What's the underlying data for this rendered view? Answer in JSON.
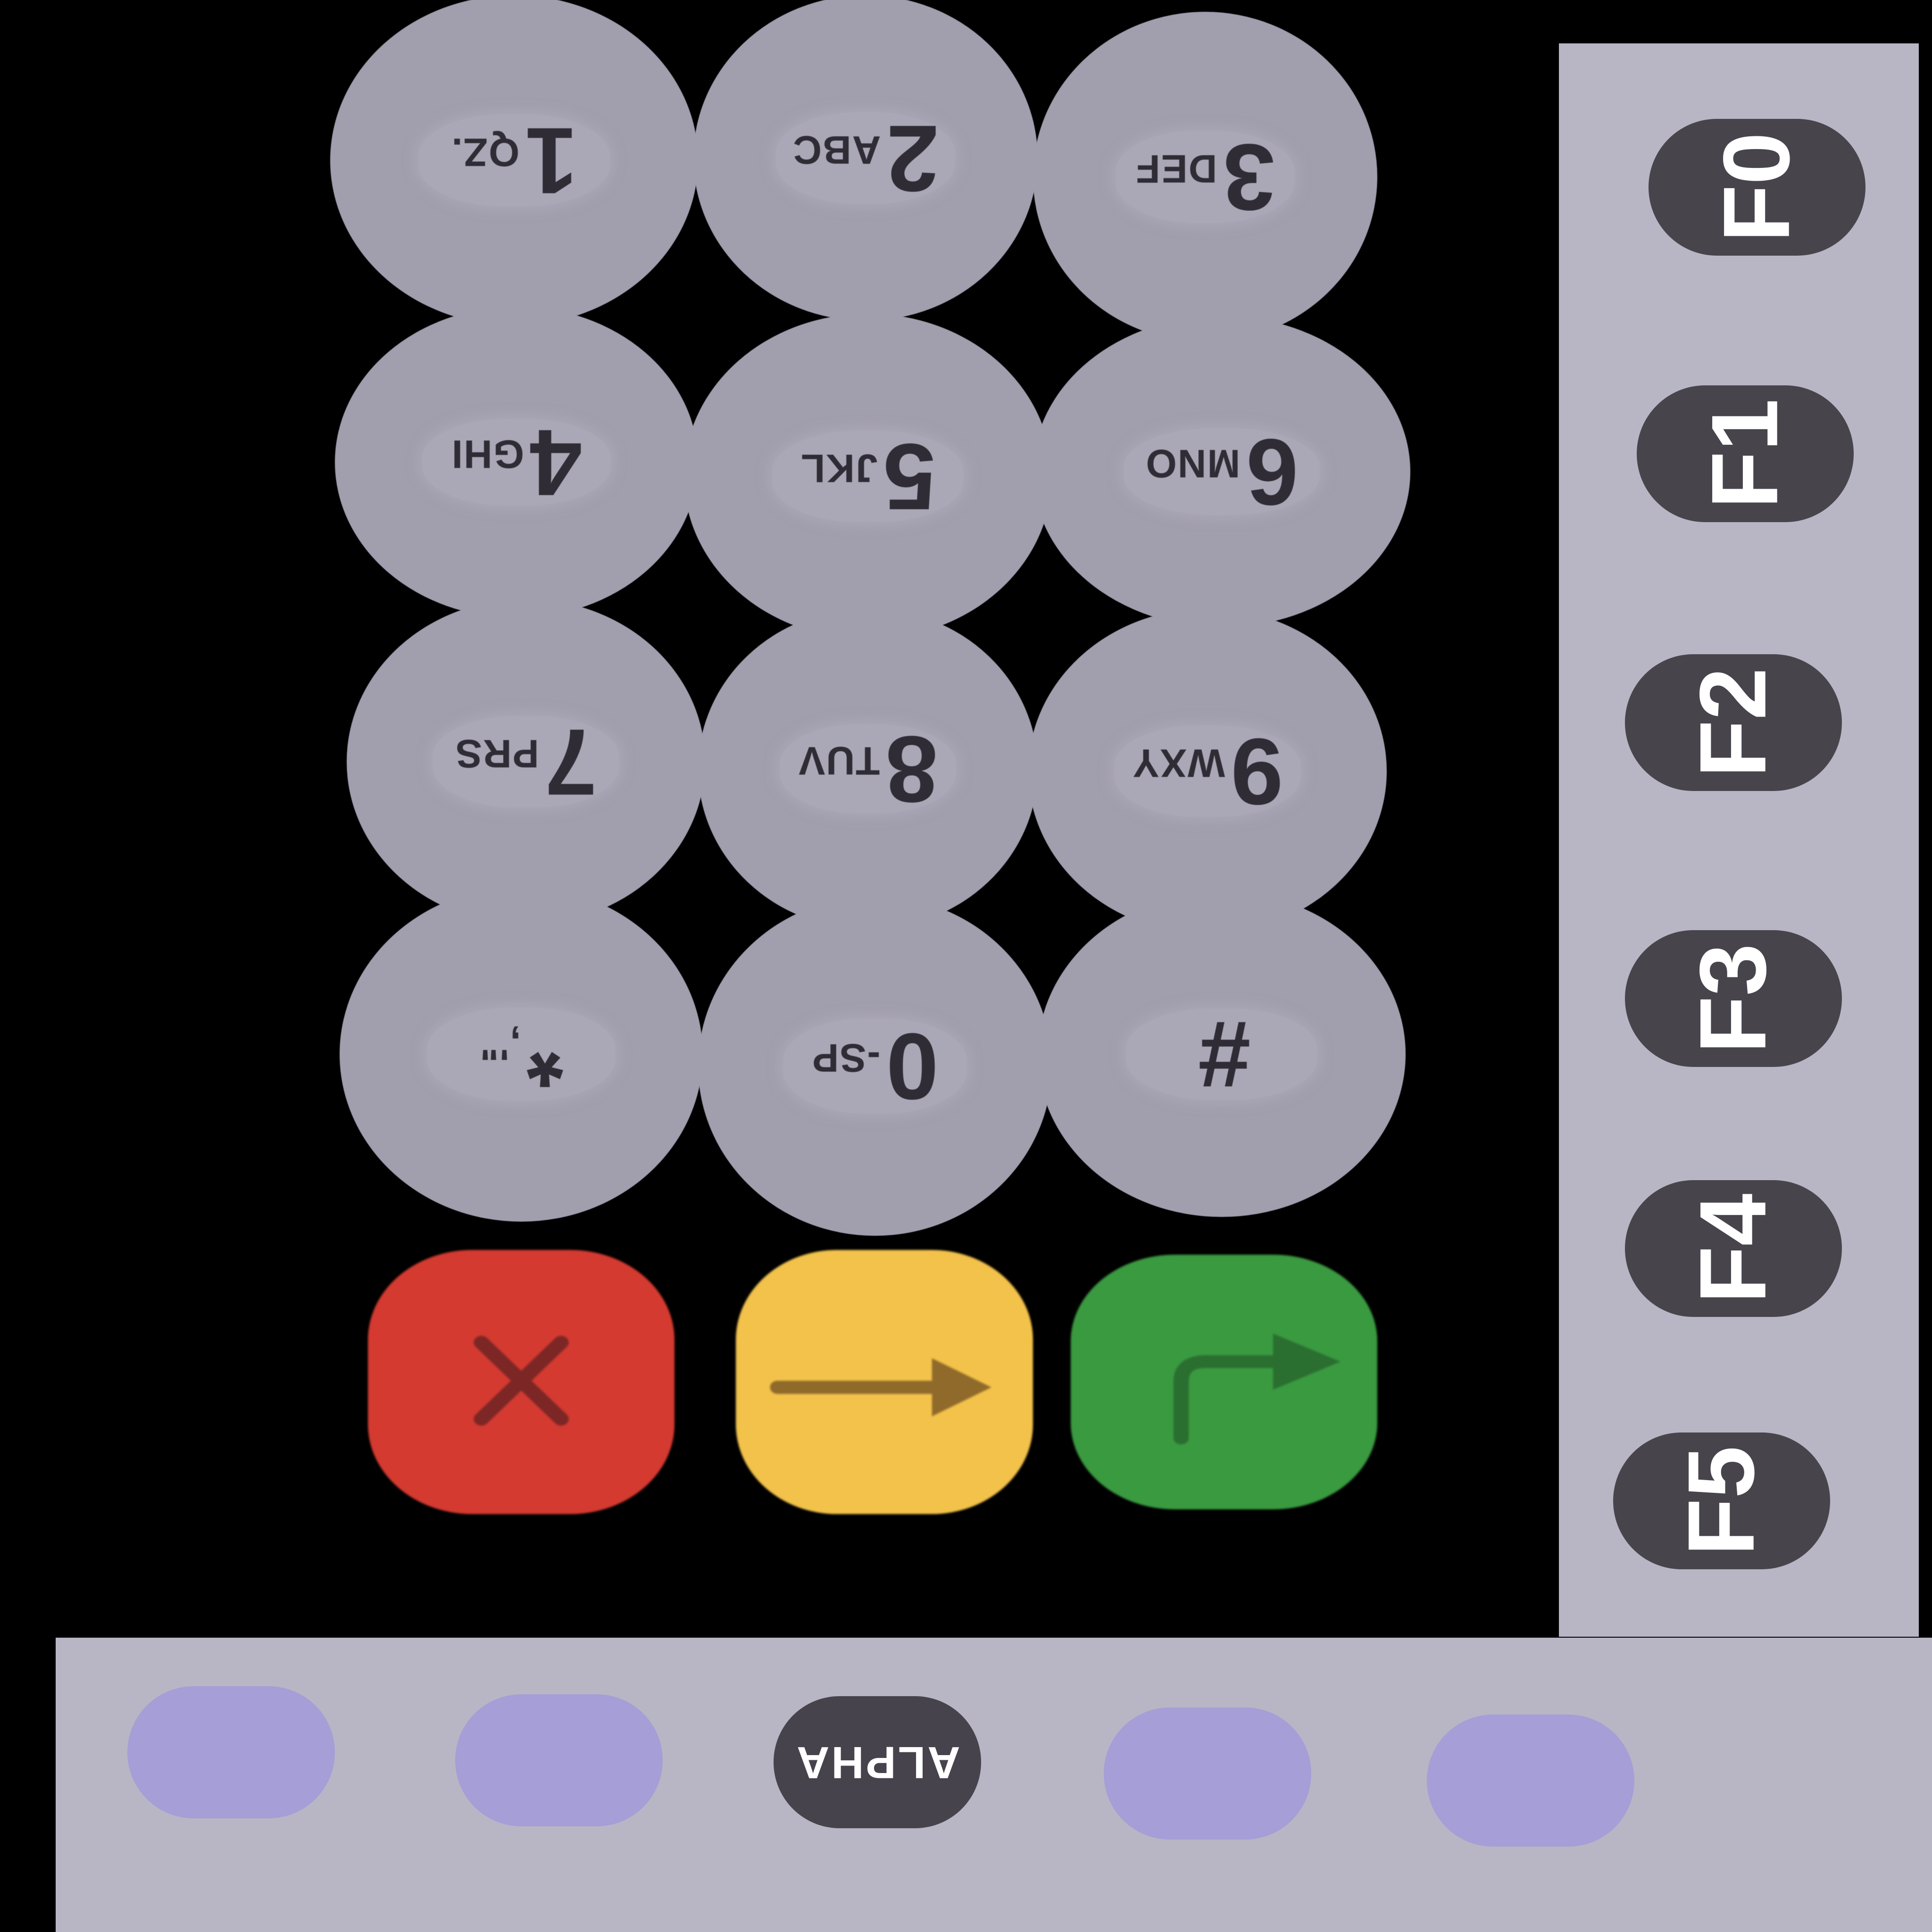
{
  "keypad": {
    "keys": [
      {
        "digit": "1",
        "letters": "QZ."
      },
      {
        "digit": "2",
        "letters": "ABC"
      },
      {
        "digit": "3",
        "letters": "DEF"
      },
      {
        "digit": "4",
        "letters": "GHI"
      },
      {
        "digit": "5",
        "letters": "JKL"
      },
      {
        "digit": "6",
        "letters": "MNO"
      },
      {
        "digit": "7",
        "letters": "PRS"
      },
      {
        "digit": "8",
        "letters": "TUV"
      },
      {
        "digit": "9",
        "letters": "WXY"
      },
      {
        "digit": "*",
        "letters": ",'\""
      },
      {
        "digit": "0",
        "letters": "-SP"
      },
      {
        "digit": "#",
        "letters": ""
      }
    ],
    "actions": [
      {
        "name": "cancel",
        "icon": "x-icon",
        "color": "#d43a30"
      },
      {
        "name": "clear",
        "icon": "arrow-right-icon",
        "color": "#f3c24a"
      },
      {
        "name": "enter",
        "icon": "enter-arrow-icon",
        "color": "#3a9a40"
      }
    ]
  },
  "function_keys": {
    "labels": [
      "F0",
      "F1",
      "F2",
      "F3",
      "F4",
      "F5"
    ]
  },
  "soft_keys": {
    "alpha_label": "ALPHA",
    "colors": {
      "blank": "#a69ed6",
      "alpha": "#46434c"
    }
  },
  "colors": {
    "background": "#000000",
    "key_gray": "#a19eae",
    "panel": "#b8b6c4",
    "function_key": "#47444c"
  }
}
